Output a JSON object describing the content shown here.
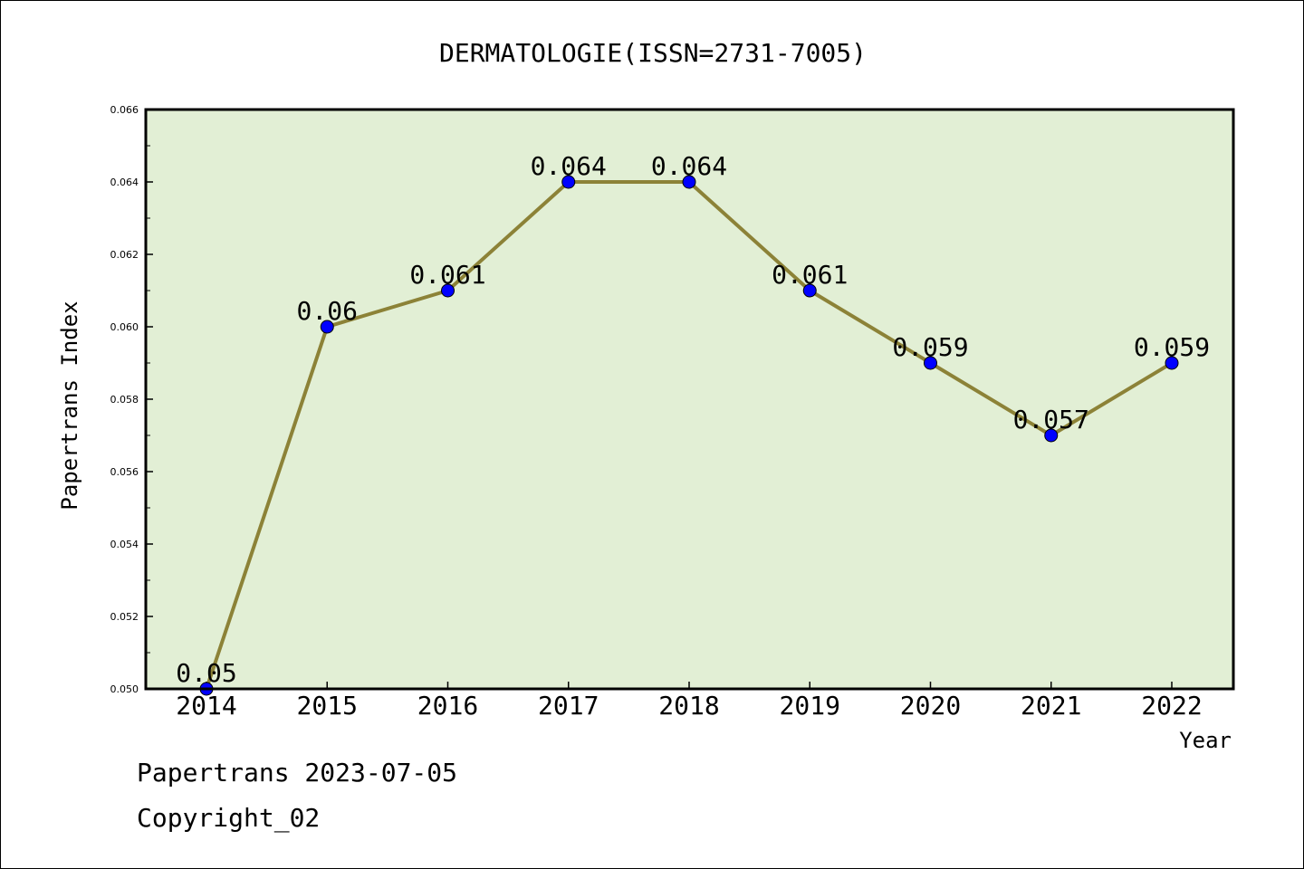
{
  "chart_data": {
    "type": "line",
    "title": "DERMATOLOGIE(ISSN=2731-7005)",
    "xlabel": "Year",
    "ylabel": "Papertrans Index",
    "categories": [
      "2014",
      "2015",
      "2016",
      "2017",
      "2018",
      "2019",
      "2020",
      "2021",
      "2022"
    ],
    "series": [
      {
        "values": [
          0.05,
          0.06,
          0.061,
          0.064,
          0.064,
          0.061,
          0.059,
          0.057,
          0.059
        ]
      }
    ],
    "data_labels": [
      "0.05",
      "0.06",
      "0.061",
      "0.064",
      "0.064",
      "0.061",
      "0.059",
      "0.057",
      "0.059"
    ],
    "ylim": [
      0.05,
      0.066
    ],
    "yticks": [
      "0.050",
      "0.052",
      "0.054",
      "0.056",
      "0.058",
      "0.060",
      "0.062",
      "0.064",
      "0.066"
    ],
    "grid": false,
    "colors": {
      "plot_background": "#e2efd5",
      "line": "#8c8237",
      "marker": "#0000ff"
    }
  },
  "footer": {
    "line1": "Papertrans 2023-07-05",
    "line2": "Copyright_02"
  }
}
